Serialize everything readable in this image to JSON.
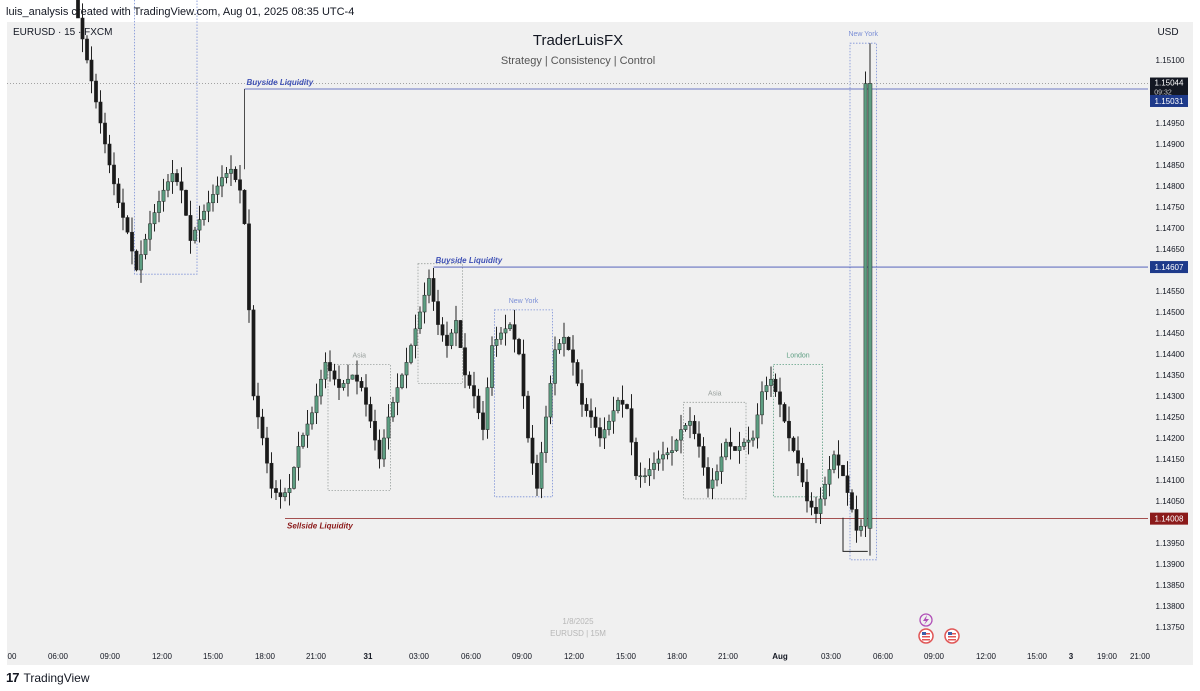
{
  "header": {
    "created_text": "luis_analysis created with TradingView.com, Aug 01, 2025 08:35 UTC-4"
  },
  "footer": {
    "brand": "TradingView",
    "logo_glyph": "17"
  },
  "chart_data": {
    "type": "candlestick",
    "symbol_label": "EURUSD · 15 · FXCM",
    "title": "TraderLuisFX",
    "subtitle": "Strategy | Consistency | Control",
    "currency": "USD",
    "watermark": [
      "1/8/2025",
      "EURUSD | 15M"
    ],
    "colors": {
      "up": "#5d9e82",
      "down": "#1a1a1a",
      "buyside": "#3f51b5",
      "sellside": "#8b1a1a",
      "bg": "#f0f0f0"
    },
    "y_range": [
      1.137,
      1.1525
    ],
    "y_ticks": [
      "1.15100",
      "1.14950",
      "1.14900",
      "1.14850",
      "1.14800",
      "1.14750",
      "1.14700",
      "1.14650",
      "1.14550",
      "1.14500",
      "1.14450",
      "1.14400",
      "1.14350",
      "1.14300",
      "1.14250",
      "1.14200",
      "1.14150",
      "1.14100",
      "1.14050",
      "1.13950",
      "1.13900",
      "1.13850",
      "1.13800",
      "1.13750"
    ],
    "x_ticks": [
      "00",
      "06:00",
      "09:00",
      "12:00",
      "15:00",
      "18:00",
      "21:00",
      "31",
      "03:00",
      "06:00",
      "09:00",
      "12:00",
      "15:00",
      "18:00",
      "21:00",
      "Aug",
      "03:00",
      "06:00",
      "09:00",
      "12:00",
      "15:00",
      "3",
      "19:00",
      "21:00"
    ],
    "price_labels": [
      {
        "value": 1.15044,
        "text": "1.15044",
        "sub": "09:32",
        "style": "current"
      },
      {
        "value": 1.15031,
        "text": "1.15031",
        "style": "buyside"
      },
      {
        "value": 1.14607,
        "text": "1.14607",
        "style": "buyside"
      },
      {
        "value": 1.14008,
        "text": "1.14008",
        "style": "sellside"
      }
    ],
    "liquidity_lines": [
      {
        "label": "Buyside Liquidity",
        "price": 1.15031,
        "from_bar": 37,
        "style": "buyside"
      },
      {
        "label": "Buyside Liquidity",
        "price": 1.14607,
        "from_bar": 79,
        "style": "buyside"
      },
      {
        "label": "Sellside Liquidity",
        "price": 1.14008,
        "from_bar": 46,
        "style": "sellside"
      }
    ],
    "sessions": [
      {
        "label": "",
        "start": 13,
        "end": 26,
        "high": 1.153,
        "low": 1.1459,
        "color": "#7b8fd6"
      },
      {
        "label": "Asia",
        "start": 56,
        "end": 69,
        "high": 1.14375,
        "low": 1.14075,
        "color": "#9aa19e"
      },
      {
        "label": "",
        "start": 76,
        "end": 85,
        "high": 1.14615,
        "low": 1.1433,
        "color": "#9aa19e"
      },
      {
        "label": "New York",
        "start": 93,
        "end": 105,
        "high": 1.14505,
        "low": 1.1406,
        "color": "#7b8fd6"
      },
      {
        "label": "Asia",
        "start": 135,
        "end": 148,
        "high": 1.14285,
        "low": 1.14055,
        "color": "#9aa19e"
      },
      {
        "label": "London",
        "start": 155,
        "end": 165,
        "high": 1.14375,
        "low": 1.1406,
        "color": "#5d9e82"
      },
      {
        "label": "New York",
        "start": 172,
        "end": 177,
        "high": 1.1514,
        "low": 1.1391,
        "color": "#7b8fd6"
      }
    ],
    "events": [
      "lightning-event-icon",
      "us-flag-event-icon",
      "us-flag-event-icon"
    ],
    "grid": false
  }
}
